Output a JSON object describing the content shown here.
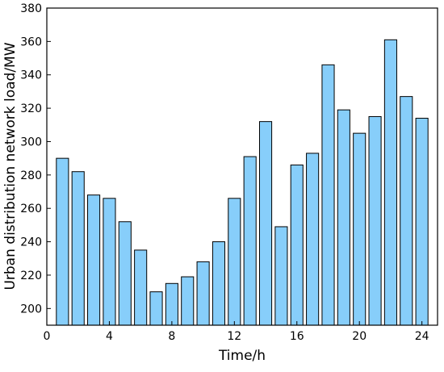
{
  "chart_data": {
    "type": "bar",
    "title": "",
    "xlabel": "Time/h",
    "ylabel": "Urban distribution network load/MW",
    "x": [
      1,
      2,
      3,
      4,
      5,
      6,
      7,
      8,
      9,
      10,
      11,
      12,
      13,
      14,
      15,
      16,
      17,
      18,
      19,
      20,
      21,
      22,
      23,
      24
    ],
    "values": [
      290,
      282,
      268,
      266,
      252,
      235,
      210,
      215,
      219,
      228,
      240,
      266,
      291,
      312,
      249,
      286,
      293,
      346,
      319,
      305,
      315,
      361,
      327,
      314
    ],
    "xlim": [
      0,
      25
    ],
    "ylim": [
      190,
      380
    ],
    "xticks": [
      0,
      4,
      8,
      12,
      16,
      20,
      24
    ],
    "yticks": [
      200,
      220,
      240,
      260,
      280,
      300,
      320,
      340,
      360,
      380
    ],
    "grid": false,
    "legend": "none",
    "colors": {
      "bar_fill": "#87CEFA",
      "bar_stroke": "#000000",
      "axis": "#000000"
    }
  }
}
